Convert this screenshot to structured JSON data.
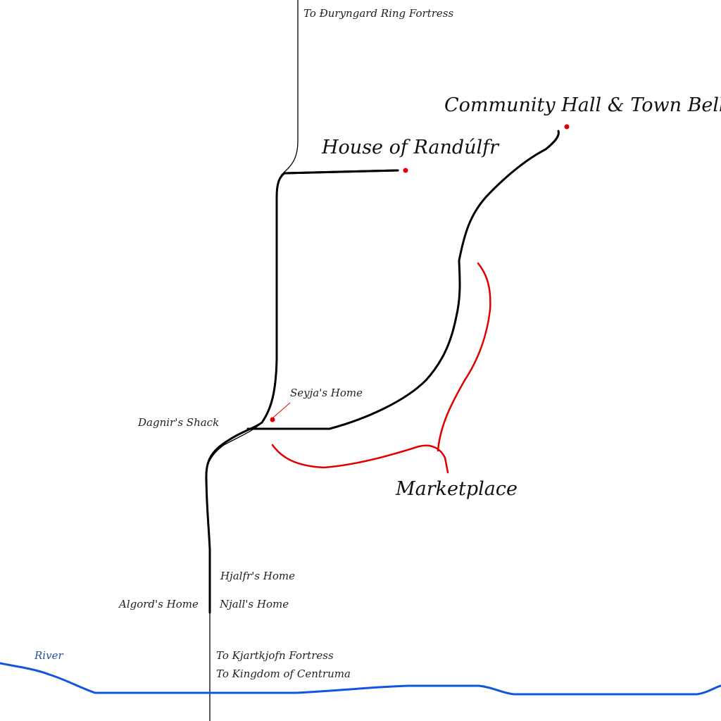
{
  "colors": {
    "road": "#000000",
    "path": "#000000",
    "district_outline": "#e00000",
    "point_marker": "#e00000",
    "river": "#1155dd",
    "background": "#ffffff"
  },
  "labels": {
    "to_duryngard": "To Ðuryngard Ring Fortress",
    "community_hall": "Community Hall & Town Bell",
    "house_randulfr": "House of Randúlfr",
    "seyja_home": "Seyja's Home",
    "dagnir_shack": "Dagnir's Shack",
    "marketplace": "Marketplace",
    "hjalfr_home": "Hjalfr's Home",
    "algord_home": "Algord's Home",
    "njall_home": "Njall's Home",
    "river": "River",
    "to_kjartkjofn": "To Kjartkjofn Fortress",
    "to_centruma": "To Kingdom of Centruma"
  },
  "markers": [
    {
      "name": "community-hall-marker",
      "icon": "red-dot"
    },
    {
      "name": "house-randulfr-marker",
      "icon": "red-dot"
    },
    {
      "name": "seyja-home-marker",
      "icon": "red-dot"
    }
  ]
}
